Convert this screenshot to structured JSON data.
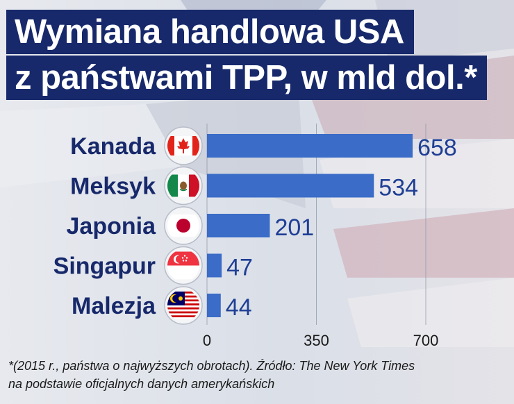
{
  "title": {
    "line1": "Wymiana handlowa USA",
    "line2": "z państwami TPP, w mld dol.*"
  },
  "chart_data": {
    "type": "bar",
    "orientation": "horizontal",
    "categories": [
      "Kanada",
      "Meksyk",
      "Japonia",
      "Singapur",
      "Malezja"
    ],
    "values": [
      658,
      534,
      201,
      47,
      44
    ],
    "data_labels": [
      "658",
      "534",
      "201",
      "47",
      "44"
    ],
    "flag_icons": [
      "canada-flag-icon",
      "mexico-flag-icon",
      "japan-flag-icon",
      "singapore-flag-icon",
      "malaysia-flag-icon"
    ],
    "xlim": [
      0,
      700
    ],
    "x_ticks": [
      0,
      350,
      700
    ],
    "x_tick_labels": [
      "0",
      "350",
      "700"
    ],
    "grid": true,
    "bar_color": "#3a6cc8",
    "label_color": "#17296b",
    "xlabel": "",
    "ylabel": ""
  },
  "footnote": {
    "line1": "*(2015 r., państwa o najwyższych obrotach). Źródło: The New York Times",
    "line2": "na podstawie oficjalnych danych amerykańskich"
  }
}
